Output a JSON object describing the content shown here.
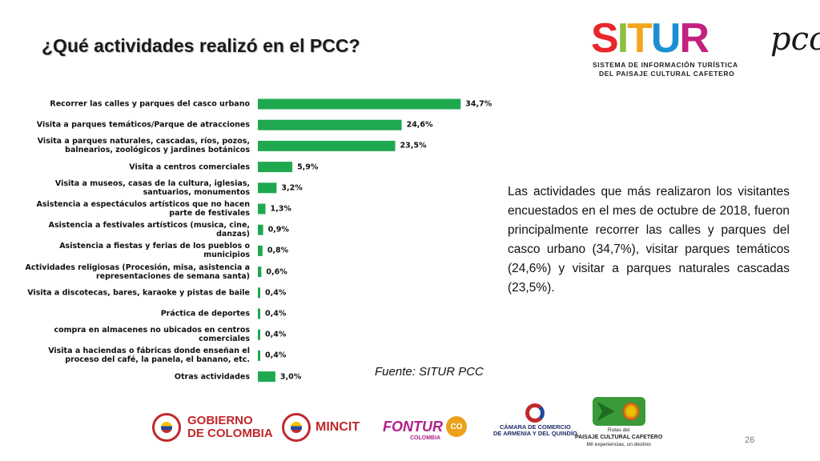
{
  "page": {
    "title": "¿Qué actividades realizó en el PCC?",
    "source": "Fuente: SITUR PCC",
    "page_number": "26",
    "description": "Las actividades que más realizaron los visitantes encuestados en el mes de octubre de 2018, fueron principalmente recorrer las calles y parques del casco urbano (34,7%), visitar parques temáticos (24,6%) y visitar a parques naturales cascadas (23,5%)."
  },
  "logo": {
    "word_letters": [
      "S",
      "I",
      "T",
      "U",
      "R"
    ],
    "word_colors": [
      "#e8262b",
      "#8bbf3f",
      "#f3a51b",
      "#1b8fd1",
      "#c4207e"
    ],
    "suffix": "pcc",
    "line1": "SISTEMA DE INFORMACIÓN TURÍSTICA",
    "line2": "DEL PAISAJE CULTURAL CAFETERO"
  },
  "footer": {
    "gobierno_line1": "GOBIERNO",
    "gobierno_line2": "DE COLOMBIA",
    "mincit": "MINCIT",
    "fontur": "FONTUR",
    "fontur_sub": "COLOMBIA",
    "co_badge": "CO",
    "camara_line1": "CÁMARA DE COMERCIO",
    "camara_line2": "DE ARMENIA Y DEL QUINDÍO",
    "rutas_line1": "Rutas del",
    "rutas_line2": "PAISAJE CULTURAL CAFETERO",
    "rutas_line3": "Mil experiencias, un destino"
  },
  "colors": {
    "bar": "#1fa84f",
    "gov_red": "#c0282d"
  },
  "chart_data": {
    "type": "bar",
    "orientation": "horizontal",
    "categories": [
      "Recorrer las calles y parques del casco urbano",
      "Visita a parques temáticos/Parque de atracciones",
      "Visita a parques naturales, cascadas, ríos, pozos, balnearios, zoológicos y jardines botánicos",
      "Visita a centros comerciales",
      "Visita a museos, casas de la cultura, iglesias, santuarios, monumentos",
      "Asistencia a espectáculos artísticos que no hacen parte de festivales",
      "Asistencia a festivales artísticos (musica, cine, danzas)",
      "Asistencia a fiestas y ferias de los pueblos o municipios",
      "Actividades religiosas (Procesión, misa, asistencia a representaciones de semana santa)",
      "Visita a discotecas, bares, karaoke y pistas de baile",
      "Práctica de deportes",
      "compra en almacenes no ubicados en centros comerciales",
      "Visita a haciendas o fábricas donde enseñan el proceso del café, la panela, el banano, etc.",
      "Otras actividades"
    ],
    "values": [
      34.7,
      24.6,
      23.5,
      5.9,
      3.2,
      1.3,
      0.9,
      0.8,
      0.6,
      0.4,
      0.4,
      0.4,
      0.4,
      3.0
    ],
    "value_labels": [
      "34,7%",
      "24,6%",
      "23,5%",
      "5,9%",
      "3,2%",
      "1,3%",
      "0,9%",
      "0,8%",
      "0,6%",
      "0,4%",
      "0,4%",
      "0,4%",
      "0,4%",
      "3,0%"
    ],
    "xlim": [
      0,
      40
    ],
    "grid": false,
    "legend": "none"
  }
}
